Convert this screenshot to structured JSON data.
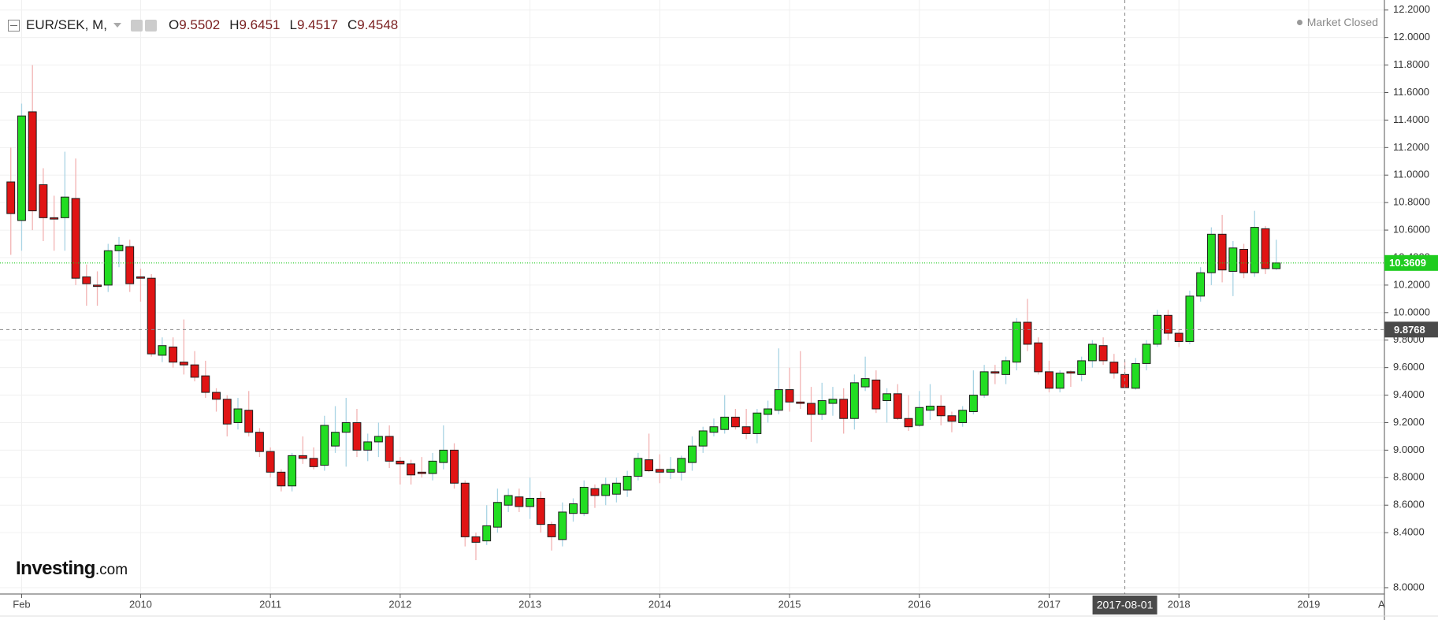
{
  "header": {
    "symbol": "EUR/SEK, M,",
    "ohlc_labels": [
      "O",
      "H",
      "L",
      "C"
    ],
    "status": "Market Closed",
    "logo": "Investing",
    "logo_suffix": ".com"
  },
  "chart_data": {
    "type": "candlestick",
    "x": [
      "2009-01",
      "2009-02",
      "2009-03",
      "2009-04",
      "2009-05",
      "2009-06",
      "2009-07",
      "2009-08",
      "2009-09",
      "2009-10",
      "2009-11",
      "2009-12",
      "2010-01",
      "2010-02",
      "2010-03",
      "2010-04",
      "2010-05",
      "2010-06",
      "2010-07",
      "2010-08",
      "2010-09",
      "2010-10",
      "2010-11",
      "2010-12",
      "2011-01",
      "2011-02",
      "2011-03",
      "2011-04",
      "2011-05",
      "2011-06",
      "2011-07",
      "2011-08",
      "2011-09",
      "2011-10",
      "2011-11",
      "2011-12",
      "2012-01",
      "2012-02",
      "2012-03",
      "2012-04",
      "2012-05",
      "2012-06",
      "2012-07",
      "2012-08",
      "2012-09",
      "2012-10",
      "2012-11",
      "2012-12",
      "2013-01",
      "2013-02",
      "2013-03",
      "2013-04",
      "2013-05",
      "2013-06",
      "2013-07",
      "2013-08",
      "2013-09",
      "2013-10",
      "2013-11",
      "2013-12",
      "2014-01",
      "2014-02",
      "2014-03",
      "2014-04",
      "2014-05",
      "2014-06",
      "2014-07",
      "2014-08",
      "2014-09",
      "2014-10",
      "2014-11",
      "2014-12",
      "2015-01",
      "2015-02",
      "2015-03",
      "2015-04",
      "2015-05",
      "2015-06",
      "2015-07",
      "2015-08",
      "2015-09",
      "2015-10",
      "2015-11",
      "2015-12",
      "2016-01",
      "2016-02",
      "2016-03",
      "2016-04",
      "2016-05",
      "2016-06",
      "2016-07",
      "2016-08",
      "2016-09",
      "2016-10",
      "2016-11",
      "2016-12",
      "2017-01",
      "2017-02",
      "2017-03",
      "2017-04",
      "2017-05",
      "2017-06",
      "2017-07",
      "2017-08",
      "2017-09",
      "2017-10",
      "2017-11",
      "2017-12",
      "2018-01",
      "2018-02",
      "2018-03",
      "2018-04",
      "2018-05",
      "2018-06",
      "2018-07",
      "2018-08",
      "2018-09",
      "2018-10"
    ],
    "open": [
      10.95,
      10.67,
      11.46,
      10.93,
      10.69,
      10.69,
      10.83,
      10.26,
      10.2,
      10.2,
      10.45,
      10.48,
      10.26,
      10.25,
      9.69,
      9.75,
      9.64,
      9.62,
      9.54,
      9.42,
      9.37,
      9.2,
      9.29,
      9.13,
      8.99,
      8.84,
      8.74,
      8.96,
      8.94,
      8.89,
      9.03,
      9.13,
      9.2,
      9.0,
      9.06,
      9.1,
      8.92,
      8.9,
      8.84,
      8.83,
      8.91,
      9.0,
      8.76,
      8.37,
      8.34,
      8.44,
      8.6,
      8.66,
      8.59,
      8.65,
      8.46,
      8.35,
      8.54,
      8.54,
      8.72,
      8.67,
      8.68,
      8.71,
      8.81,
      8.93,
      8.86,
      8.84,
      8.84,
      8.91,
      9.03,
      9.13,
      9.15,
      9.24,
      9.17,
      9.12,
      9.26,
      9.29,
      9.44,
      9.35,
      9.34,
      9.26,
      9.34,
      9.37,
      9.23,
      9.46,
      9.51,
      9.36,
      9.41,
      9.23,
      9.18,
      9.29,
      9.32,
      9.25,
      9.2,
      9.28,
      9.4,
      9.57,
      9.55,
      9.64,
      9.93,
      9.78,
      9.57,
      9.45,
      9.57,
      9.55,
      9.65,
      9.76,
      9.64,
      9.5502,
      9.45,
      9.63,
      9.77,
      9.98,
      9.85,
      9.79,
      10.12,
      10.29,
      10.57,
      10.3,
      10.46,
      10.29,
      10.61,
      10.32
    ],
    "high": [
      11.2,
      11.52,
      11.8,
      11.05,
      10.85,
      11.17,
      11.12,
      10.35,
      10.3,
      10.5,
      10.55,
      10.53,
      10.32,
      10.28,
      9.82,
      9.82,
      9.95,
      9.72,
      9.65,
      9.45,
      9.4,
      9.38,
      9.43,
      9.16,
      9.02,
      8.86,
      8.98,
      9.1,
      9.02,
      9.25,
      9.32,
      9.38,
      9.3,
      9.12,
      9.2,
      9.18,
      8.95,
      8.93,
      8.95,
      8.98,
      9.18,
      9.05,
      8.78,
      8.4,
      8.6,
      8.72,
      8.72,
      8.72,
      8.8,
      8.7,
      8.48,
      8.62,
      8.65,
      8.78,
      8.75,
      8.8,
      8.8,
      8.85,
      8.98,
      9.12,
      8.97,
      8.95,
      8.96,
      9.1,
      9.17,
      9.23,
      9.4,
      9.3,
      9.3,
      9.3,
      9.36,
      9.74,
      9.6,
      9.72,
      9.46,
      9.49,
      9.46,
      9.45,
      9.55,
      9.68,
      9.58,
      9.45,
      9.48,
      9.4,
      9.43,
      9.48,
      9.4,
      9.28,
      9.32,
      9.58,
      9.62,
      9.62,
      9.68,
      9.96,
      10.1,
      9.82,
      9.65,
      9.58,
      9.58,
      9.68,
      9.8,
      9.82,
      9.7,
      9.6451,
      9.67,
      9.8,
      10.02,
      10.02,
      9.88,
      10.16,
      10.33,
      10.62,
      10.71,
      10.52,
      10.5,
      10.74,
      10.63,
      10.53
    ],
    "low": [
      10.42,
      10.45,
      10.6,
      10.52,
      10.45,
      10.45,
      10.2,
      10.05,
      10.05,
      10.15,
      10.33,
      10.15,
      10.08,
      9.68,
      9.64,
      9.6,
      9.55,
      9.5,
      9.38,
      9.28,
      9.1,
      9.15,
      9.1,
      8.95,
      8.8,
      8.7,
      8.7,
      8.9,
      8.86,
      8.85,
      8.98,
      8.88,
      8.95,
      8.92,
      8.95,
      8.87,
      8.75,
      8.75,
      8.8,
      8.78,
      8.86,
      8.72,
      8.3,
      8.2,
      8.31,
      8.4,
      8.55,
      8.55,
      8.5,
      8.4,
      8.27,
      8.3,
      8.48,
      8.52,
      8.58,
      8.6,
      8.62,
      8.66,
      8.78,
      8.84,
      8.76,
      8.79,
      8.78,
      8.85,
      8.98,
      9.1,
      9.12,
      9.15,
      9.08,
      9.05,
      9.2,
      9.26,
      9.28,
      9.3,
      9.06,
      9.22,
      9.25,
      9.12,
      9.15,
      9.43,
      9.27,
      9.2,
      9.22,
      9.14,
      9.17,
      9.22,
      9.18,
      9.13,
      9.17,
      9.26,
      9.38,
      9.48,
      9.48,
      9.58,
      9.72,
      9.55,
      9.42,
      9.42,
      9.46,
      9.5,
      9.6,
      9.62,
      9.52,
      9.4517,
      9.44,
      9.58,
      9.75,
      9.8,
      9.75,
      9.77,
      10.08,
      10.2,
      10.22,
      10.12,
      10.25,
      10.26,
      10.28,
      10.31
    ],
    "close": [
      10.72,
      11.43,
      10.74,
      10.69,
      10.68,
      10.84,
      10.25,
      10.21,
      10.19,
      10.45,
      10.49,
      10.21,
      10.25,
      9.7,
      9.76,
      9.64,
      9.62,
      9.53,
      9.42,
      9.37,
      9.19,
      9.3,
      9.13,
      8.99,
      8.84,
      8.74,
      8.96,
      8.94,
      8.88,
      9.18,
      9.13,
      9.2,
      9.0,
      9.06,
      9.1,
      8.92,
      8.9,
      8.82,
      8.83,
      8.92,
      9.0,
      8.76,
      8.37,
      8.33,
      8.45,
      8.62,
      8.67,
      8.59,
      8.65,
      8.46,
      8.37,
      8.55,
      8.61,
      8.73,
      8.67,
      8.75,
      8.76,
      8.81,
      8.94,
      8.85,
      8.84,
      8.86,
      8.94,
      9.03,
      9.14,
      9.17,
      9.24,
      9.17,
      9.12,
      9.27,
      9.3,
      9.44,
      9.35,
      9.34,
      9.26,
      9.36,
      9.37,
      9.23,
      9.49,
      9.52,
      9.3,
      9.41,
      9.23,
      9.17,
      9.31,
      9.32,
      9.25,
      9.21,
      9.29,
      9.4,
      9.57,
      9.56,
      9.65,
      9.93,
      9.77,
      9.57,
      9.45,
      9.56,
      9.56,
      9.65,
      9.77,
      9.65,
      9.56,
      9.4548,
      9.63,
      9.77,
      9.98,
      9.85,
      9.79,
      10.12,
      10.29,
      10.57,
      10.31,
      10.47,
      10.29,
      10.62,
      10.32,
      10.3609
    ],
    "up_color": "#22dd22",
    "down_color": "#e01414",
    "up_wick_color": "#a9d4e4",
    "down_wick_color": "#f2b3b3",
    "xlim": [
      "2008-12",
      "2019-08"
    ],
    "ylim": [
      7.954,
      12.273
    ],
    "yticks": [
      {
        "value": 8,
        "label": "8.0000"
      },
      {
        "value": 8.4,
        "label": "8.4000"
      },
      {
        "value": 8.6,
        "label": "8.6000"
      },
      {
        "value": 8.8,
        "label": "8.8000"
      },
      {
        "value": 9,
        "label": "9.0000"
      },
      {
        "value": 9.2,
        "label": "9.2000"
      },
      {
        "value": 9.4,
        "label": "9.4000"
      },
      {
        "value": 9.6,
        "label": "9.6000"
      },
      {
        "value": 9.8,
        "label": "9.8000"
      },
      {
        "value": 10,
        "label": "10.0000"
      },
      {
        "value": 10.2,
        "label": "10.2000"
      },
      {
        "value": 10.4,
        "label": "10.4000"
      },
      {
        "value": 10.6,
        "label": "10.6000"
      },
      {
        "value": 10.8,
        "label": "10.8000"
      },
      {
        "value": 11,
        "label": "11.0000"
      },
      {
        "value": 11.2,
        "label": "11.2000"
      },
      {
        "value": 11.4,
        "label": "11.4000"
      },
      {
        "value": 11.6,
        "label": "11.6000"
      },
      {
        "value": 11.8,
        "label": "11.8000"
      },
      {
        "value": 12,
        "label": "12.0000"
      },
      {
        "value": 12.2,
        "label": "12.2000"
      }
    ],
    "xticks": [
      {
        "value": "2009-02",
        "label": "Feb"
      },
      {
        "value": "2010-01",
        "label": "2010"
      },
      {
        "value": "2011-01",
        "label": "2011"
      },
      {
        "value": "2012-01",
        "label": "2012"
      },
      {
        "value": "2013-01",
        "label": "2013"
      },
      {
        "value": "2014-01",
        "label": "2014"
      },
      {
        "value": "2015-01",
        "label": "2015"
      },
      {
        "value": "2016-01",
        "label": "2016"
      },
      {
        "value": "2017-01",
        "label": "2017"
      },
      {
        "value": "2018-01",
        "label": "2018"
      },
      {
        "value": "2019-01",
        "label": "2019"
      },
      {
        "value": "2019-08",
        "label": "Au"
      }
    ],
    "grid": true,
    "last_price_color": "#1fcc1f",
    "crosshair": {
      "x": "2017-08",
      "label": "2017-08-01",
      "y": 9.8768
    }
  }
}
